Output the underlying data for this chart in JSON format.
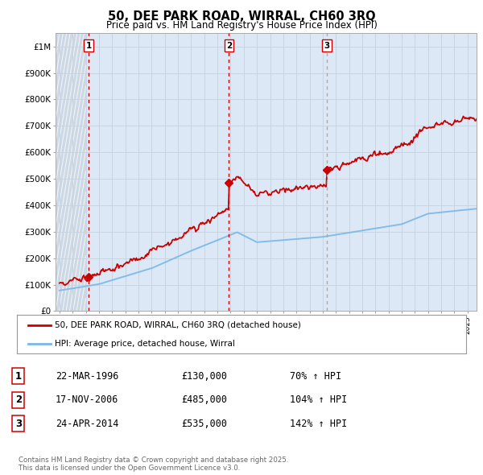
{
  "title": "50, DEE PARK ROAD, WIRRAL, CH60 3RQ",
  "subtitle": "Price paid vs. HM Land Registry's House Price Index (HPI)",
  "ylim": [
    0,
    1050000
  ],
  "xlim": [
    1993.7,
    2025.7
  ],
  "bg_color": "#ffffff",
  "plot_bg_color": "#dce8f5",
  "hatch_color": "#c8d8e8",
  "grid_color": "#c8d4e0",
  "hpi_color": "#7ab8e8",
  "price_color": "#cc0000",
  "dashed_color_red": "#cc0000",
  "dashed_color_gray": "#aaaaaa",
  "purchase_dates": [
    1996.22,
    2006.88,
    2014.31
  ],
  "purchase_prices": [
    130000,
    485000,
    535000
  ],
  "purchase_labels": [
    "1",
    "2",
    "3"
  ],
  "legend_entries": [
    "50, DEE PARK ROAD, WIRRAL, CH60 3RQ (detached house)",
    "HPI: Average price, detached house, Wirral"
  ],
  "table_rows": [
    [
      "1",
      "22-MAR-1996",
      "£130,000",
      "70% ↑ HPI"
    ],
    [
      "2",
      "17-NOV-2006",
      "£485,000",
      "104% ↑ HPI"
    ],
    [
      "3",
      "24-APR-2014",
      "£535,000",
      "142% ↑ HPI"
    ]
  ],
  "footer": "Contains HM Land Registry data © Crown copyright and database right 2025.\nThis data is licensed under the Open Government Licence v3.0.",
  "ytick_labels": [
    "£0",
    "£100K",
    "£200K",
    "£300K",
    "£400K",
    "£500K",
    "£600K",
    "£700K",
    "£800K",
    "£900K",
    "£1M"
  ],
  "ytick_values": [
    0,
    100000,
    200000,
    300000,
    400000,
    500000,
    600000,
    700000,
    800000,
    900000,
    1000000
  ]
}
